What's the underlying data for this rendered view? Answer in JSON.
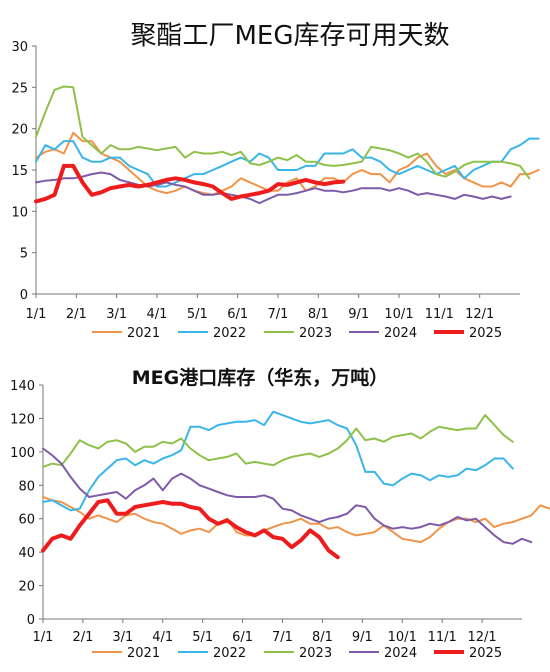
{
  "chart_data": [
    {
      "type": "line",
      "title": "聚酯工厂MEG库存可用天数",
      "ylim": [
        0,
        30
      ],
      "yticks": [
        "0",
        "5",
        "10",
        "15",
        "20",
        "25",
        "30"
      ],
      "xticks": [
        "1/1",
        "2/1",
        "3/1",
        "4/1",
        "5/1",
        "6/1",
        "7/1",
        "8/1",
        "9/1",
        "10/1",
        "11/1",
        "12/1"
      ],
      "legend_position": "bottom",
      "series": [
        {
          "name": "2021",
          "color": "#f0944a",
          "width": 2,
          "values": [
            16.5,
            17.2,
            17.5,
            17,
            19.5,
            18.5,
            18.5,
            17,
            16.5,
            16,
            15,
            14,
            13,
            12.5,
            12.2,
            12.5,
            13,
            12.5,
            12.2,
            12,
            12.5,
            13,
            14,
            13.5,
            13,
            12.5,
            12.5,
            13.5,
            14,
            12.5,
            13,
            14,
            14,
            13.5,
            14.5,
            15,
            14.5,
            14.5,
            13.5,
            15,
            15.5,
            16.5,
            17,
            15.5,
            14.5,
            15,
            14,
            13.5,
            13,
            13,
            13.5,
            13,
            14.5,
            14.5,
            15
          ]
        },
        {
          "name": "2022",
          "color": "#3ab5ea",
          "width": 2,
          "values": [
            16,
            18,
            17.5,
            18.5,
            18.5,
            16.5,
            16,
            16,
            16.5,
            16.5,
            15.5,
            15,
            14.5,
            13,
            13,
            13.5,
            14,
            14.5,
            14.5,
            15,
            15.5,
            16,
            16.5,
            16,
            17,
            16.5,
            15,
            15,
            15,
            15.5,
            15.5,
            17,
            17,
            17,
            17.5,
            16.5,
            16.5,
            16,
            15,
            14.5,
            15,
            15.5,
            15,
            14.5,
            15,
            15.5,
            14,
            15,
            15.5,
            16,
            16,
            17.5,
            18,
            18.8,
            18.8
          ]
        },
        {
          "name": "2023",
          "color": "#8fc14a",
          "width": 2,
          "values": [
            19,
            22,
            24.7,
            25.1,
            25,
            19,
            18,
            17,
            18,
            17.5,
            17.5,
            17.8,
            17.6,
            17.4,
            17.6,
            17.8,
            16.5,
            17.2,
            17,
            17,
            17.2,
            16.8,
            17.2,
            15.8,
            15.6,
            16,
            16.5,
            16.2,
            16.8,
            16,
            16,
            15.6,
            15.5,
            15.6,
            15.8,
            16,
            17.8,
            17.6,
            17.4,
            17,
            16.5,
            17,
            16,
            14.5,
            14.2,
            14.8,
            15.6,
            16,
            16,
            16,
            16,
            15.8,
            15.5,
            14
          ]
        },
        {
          "name": "2024",
          "color": "#7e5ba8",
          "width": 2,
          "values": [
            13.5,
            13.7,
            13.8,
            14,
            14,
            14.2,
            14.5,
            14.7,
            14.5,
            13.8,
            13.5,
            13.2,
            13,
            13.2,
            13.5,
            13.2,
            13,
            12.5,
            12,
            12,
            12.2,
            12,
            11.8,
            11.5,
            11,
            11.5,
            12,
            12,
            12.2,
            12.5,
            12.8,
            12.5,
            12.5,
            12.3,
            12.5,
            12.8,
            12.8,
            12.8,
            12.5,
            12.8,
            12.5,
            12,
            12.2,
            12,
            11.8,
            11.5,
            12,
            11.8,
            11.5,
            11.8,
            11.5,
            11.8
          ]
        },
        {
          "name": "2025",
          "color": "#ee1c1c",
          "width": 4,
          "values": [
            11.2,
            11.5,
            12,
            15.5,
            15.5,
            13.5,
            12,
            12.3,
            12.8,
            13,
            13.2,
            13,
            13.2,
            13.5,
            13.8,
            14,
            13.8,
            13.5,
            13.3,
            13,
            12.2,
            11.5,
            11.8,
            12,
            12.2,
            12.5,
            13.3,
            13.2,
            13.5,
            13.8,
            13.5,
            13.3,
            13.5,
            13.6
          ]
        }
      ]
    },
    {
      "type": "line",
      "title": "MEG港口库存（华东，万吨）",
      "ylim": [
        0,
        140
      ],
      "yticks": [
        "0",
        "20",
        "40",
        "60",
        "80",
        "100",
        "120",
        "140"
      ],
      "xticks": [
        "1/1",
        "2/1",
        "3/1",
        "4/1",
        "5/1",
        "6/1",
        "7/1",
        "8/1",
        "9/1",
        "10/1",
        "11/1",
        "12/1"
      ],
      "legend_position": "bottom",
      "series": [
        {
          "name": "2021",
          "color": "#f0944a",
          "width": 2,
          "values": [
            73,
            71,
            70,
            67,
            64,
            60,
            62,
            60,
            58,
            62,
            63,
            60,
            58,
            57,
            54,
            51,
            53,
            54,
            52,
            57,
            60,
            52,
            50,
            50,
            53,
            55,
            57,
            58,
            60,
            57,
            57,
            54,
            55,
            52,
            50,
            51,
            52,
            56,
            52,
            48,
            47,
            46,
            49,
            54,
            58,
            60,
            60,
            58,
            60,
            55,
            57,
            58,
            60,
            62,
            68,
            66
          ]
        },
        {
          "name": "2022",
          "color": "#3ab5ea",
          "width": 2,
          "values": [
            70,
            71,
            68,
            65,
            66,
            77,
            85,
            90,
            95,
            96,
            92,
            95,
            93,
            96,
            98,
            101,
            115,
            115,
            113,
            116,
            117,
            118,
            118,
            119,
            116,
            124,
            122,
            120,
            118,
            117,
            118,
            119,
            116,
            114,
            104,
            88,
            88,
            81,
            80,
            84,
            87,
            86,
            83,
            86,
            85,
            86,
            90,
            89,
            92,
            96,
            96,
            90
          ]
        },
        {
          "name": "2023",
          "color": "#8fc14a",
          "width": 2,
          "values": [
            91,
            93,
            92,
            99,
            107,
            104,
            102,
            106,
            107,
            105,
            100,
            103,
            103,
            106,
            105,
            108,
            102,
            98,
            95,
            96,
            97,
            99,
            93,
            94,
            93,
            92,
            95,
            97,
            98,
            99,
            97,
            99,
            102,
            107,
            114,
            107,
            108,
            106,
            109,
            110,
            111,
            108,
            112,
            115,
            114,
            113,
            114,
            114,
            122,
            116,
            110,
            106
          ]
        },
        {
          "name": "2024",
          "color": "#7e5ba8",
          "width": 2,
          "values": [
            102,
            98,
            93,
            85,
            78,
            73,
            74,
            75,
            76,
            72,
            77,
            80,
            84,
            77,
            84,
            87,
            84,
            80,
            78,
            76,
            74,
            73,
            73,
            73,
            74,
            72,
            66,
            65,
            62,
            60,
            58,
            60,
            61,
            63,
            68,
            67,
            60,
            56,
            54,
            55,
            54,
            55,
            57,
            56,
            58,
            61,
            59,
            60,
            55,
            50,
            46,
            45,
            48,
            46
          ]
        },
        {
          "name": "2025",
          "color": "#ee1c1c",
          "width": 4,
          "values": [
            41,
            48,
            50,
            48,
            56,
            63,
            70,
            71,
            63,
            63,
            67,
            68,
            69,
            70,
            69,
            69,
            67,
            66,
            60,
            57,
            59,
            55,
            52,
            50,
            53,
            49,
            48,
            43,
            47,
            53,
            49,
            41,
            37
          ]
        }
      ]
    }
  ]
}
